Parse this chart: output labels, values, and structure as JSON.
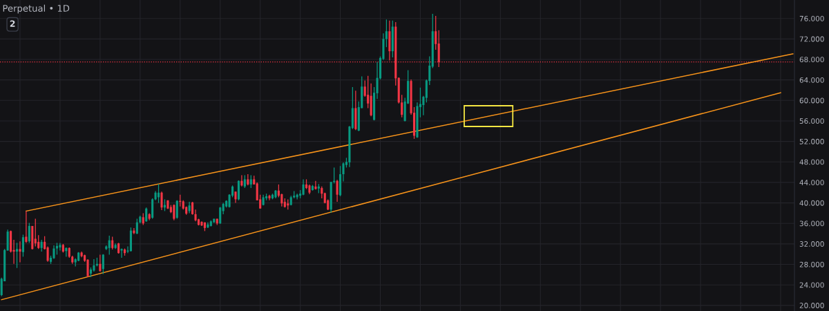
{
  "chart_data": {
    "type": "candlestick",
    "title": "Perpetual • 1D",
    "annotations": [
      "2"
    ],
    "categories": [
      null,
      null,
      null,
      null,
      null,
      null,
      null,
      null,
      null,
      null,
      null,
      null,
      null,
      null,
      null,
      null,
      null,
      null,
      null,
      null,
      null,
      null,
      null,
      null,
      null,
      null,
      null,
      null,
      null,
      null,
      null,
      null,
      null,
      null,
      null,
      null,
      null,
      null,
      null,
      null,
      null,
      null,
      null,
      null,
      null,
      null,
      null,
      null,
      null,
      null,
      null,
      null,
      null,
      null,
      null,
      null,
      null,
      null,
      null,
      null,
      null,
      null,
      null,
      null,
      null,
      null,
      null,
      null,
      null,
      null,
      null,
      null,
      null,
      null,
      null,
      null,
      null,
      null,
      null,
      null,
      null,
      null,
      null,
      null,
      null,
      null,
      null,
      null,
      null,
      null,
      null,
      null,
      null,
      null,
      null,
      null,
      null,
      null,
      null,
      null,
      null,
      null,
      null,
      null,
      null,
      null,
      null,
      null,
      null,
      null,
      null,
      null,
      null,
      null,
      null,
      null,
      null,
      null,
      null,
      null,
      null,
      null,
      null,
      null,
      null,
      null,
      null,
      null,
      null,
      null,
      null,
      null,
      null,
      null,
      null,
      null,
      null,
      null,
      null,
      null,
      null,
      null,
      null,
      null,
      null,
      null,
      null,
      null,
      null,
      null,
      null,
      null,
      null,
      null,
      null,
      null,
      null,
      null,
      null,
      null,
      null,
      null,
      null,
      null,
      null,
      null,
      null,
      null,
      null,
      null,
      null,
      null,
      null,
      null,
      null,
      null,
      null,
      null,
      null,
      null,
      null,
      null,
      null,
      null,
      null,
      null,
      null,
      null,
      null,
      null,
      null,
      null,
      null,
      null,
      null,
      null,
      null,
      null,
      null,
      null,
      null,
      null,
      null,
      null,
      null,
      null,
      null,
      null,
      null,
      null,
      null,
      null,
      null,
      null,
      null,
      null,
      null,
      null,
      null,
      null,
      null,
      null,
      null,
      null,
      null,
      null,
      null,
      null,
      null,
      null,
      null,
      null,
      null,
      null,
      null,
      null,
      null,
      null,
      null,
      null,
      null,
      null,
      null,
      null,
      null,
      null,
      null,
      null,
      null,
      null,
      null,
      null,
      null,
      null,
      null,
      null,
      null,
      null
    ],
    "ohlc": [
      [
        22.0,
        25.4,
        21.8,
        25.2
      ],
      [
        24.7,
        31.0,
        24.7,
        30.8
      ],
      [
        30.7,
        34.8,
        30.7,
        34.4
      ],
      [
        34.5,
        34.6,
        30.3,
        30.5
      ],
      [
        30.8,
        32.8,
        28.1,
        30.5
      ],
      [
        30.5,
        32.2,
        27.3,
        31.0
      ],
      [
        31.0,
        32.5,
        28.4,
        30.5
      ],
      [
        30.4,
        33.8,
        29.5,
        33.3
      ],
      [
        33.4,
        38.4,
        32.2,
        32.4
      ],
      [
        32.5,
        36.1,
        32.2,
        35.5
      ],
      [
        35.5,
        35.5,
        30.9,
        31.0
      ],
      [
        33.0,
        36.9,
        31.5,
        32.1
      ],
      [
        32.4,
        33.7,
        31.0,
        31.2
      ],
      [
        31.2,
        32.8,
        30.5,
        32.4
      ],
      [
        32.4,
        33.5,
        30.9,
        31.0
      ],
      [
        31.3,
        31.5,
        28.5,
        28.7
      ],
      [
        28.5,
        29.7,
        28.1,
        29.3
      ],
      [
        29.2,
        31.7,
        29.1,
        31.1
      ],
      [
        31.1,
        32.2,
        29.9,
        31.6
      ],
      [
        31.3,
        32.2,
        30.7,
        31.8
      ],
      [
        31.8,
        32.0,
        30.3,
        30.5
      ],
      [
        30.6,
        31.3,
        29.5,
        31.2
      ],
      [
        31.2,
        31.3,
        29.3,
        29.5
      ],
      [
        29.5,
        29.7,
        28.1,
        28.4
      ],
      [
        28.4,
        29.2,
        27.6,
        29.0
      ],
      [
        28.7,
        30.4,
        28.6,
        30.3
      ],
      [
        30.3,
        30.5,
        29.4,
        29.6
      ],
      [
        29.8,
        29.9,
        28.5,
        28.7
      ],
      [
        28.9,
        29.0,
        25.5,
        25.7
      ],
      [
        26.2,
        27.4,
        25.5,
        27.0
      ],
      [
        26.8,
        29.0,
        26.6,
        27.8
      ],
      [
        27.8,
        29.3,
        27.6,
        28.1
      ],
      [
        28.1,
        29.9,
        26.6,
        26.7
      ],
      [
        27.1,
        30.0,
        26.1,
        29.9
      ],
      [
        31.0,
        31.7,
        30.8,
        31.5
      ],
      [
        31.2,
        33.6,
        29.9,
        32.7
      ],
      [
        32.7,
        33.4,
        30.9,
        31.2
      ],
      [
        31.2,
        32.1,
        31.0,
        31.8
      ],
      [
        32.1,
        32.2,
        30.1,
        30.2
      ],
      [
        30.7,
        31.1,
        29.3,
        31.0
      ],
      [
        30.9,
        31.1,
        29.7,
        30.2
      ],
      [
        30.5,
        31.5,
        30.2,
        30.7
      ],
      [
        30.6,
        35.2,
        30.5,
        34.6
      ],
      [
        34.6,
        35.1,
        33.9,
        34.1
      ],
      [
        34.0,
        36.9,
        33.9,
        36.2
      ],
      [
        36.2,
        37.5,
        36.0,
        37.3
      ],
      [
        37.2,
        38.0,
        35.7,
        36.0
      ],
      [
        36.4,
        39.1,
        36.3,
        38.9
      ],
      [
        37.8,
        38.0,
        36.6,
        36.9
      ],
      [
        37.1,
        40.9,
        36.9,
        40.7
      ],
      [
        40.7,
        42.3,
        40.5,
        42.0
      ],
      [
        41.1,
        43.7,
        40.0,
        42.0
      ],
      [
        42.0,
        42.2,
        38.6,
        39.1
      ],
      [
        39.1,
        40.7,
        38.4,
        39.6
      ],
      [
        40.5,
        40.5,
        38.8,
        38.9
      ],
      [
        39.2,
        39.6,
        38.0,
        38.2
      ],
      [
        39.6,
        39.7,
        36.6,
        36.9
      ],
      [
        37.1,
        40.5,
        36.9,
        40.4
      ],
      [
        40.4,
        41.6,
        39.3,
        40.2
      ],
      [
        40.3,
        40.5,
        38.7,
        38.9
      ],
      [
        39.2,
        39.3,
        37.7,
        37.9
      ],
      [
        38.4,
        40.2,
        38.0,
        39.5
      ],
      [
        40.1,
        40.2,
        37.7,
        37.8
      ],
      [
        37.8,
        38.7,
        36.4,
        36.6
      ],
      [
        36.8,
        36.9,
        35.6,
        35.7
      ],
      [
        36.3,
        36.4,
        35.5,
        35.6
      ],
      [
        36.2,
        36.2,
        34.5,
        35.1
      ],
      [
        35.2,
        36.2,
        35.1,
        35.8
      ],
      [
        35.5,
        36.6,
        35.4,
        36.4
      ],
      [
        36.2,
        36.9,
        36.1,
        36.9
      ],
      [
        36.9,
        36.9,
        35.7,
        36.0
      ],
      [
        36.0,
        39.2,
        35.9,
        39.1
      ],
      [
        38.4,
        40.0,
        37.8,
        39.8
      ],
      [
        39.3,
        40.5,
        39.1,
        40.4
      ],
      [
        39.2,
        41.7,
        39.1,
        41.6
      ],
      [
        41.4,
        43.4,
        41.1,
        43.2
      ],
      [
        42.2,
        42.2,
        40.0,
        40.7
      ],
      [
        40.7,
        44.4,
        40.5,
        44.3
      ],
      [
        44.3,
        45.4,
        43.2,
        43.4
      ],
      [
        43.2,
        45.4,
        42.9,
        44.6
      ],
      [
        44.6,
        45.6,
        43.4,
        43.6
      ],
      [
        43.6,
        45.4,
        42.9,
        44.6
      ],
      [
        44.6,
        45.3,
        43.6,
        43.6
      ],
      [
        43.8,
        44.0,
        40.5,
        40.5
      ],
      [
        40.7,
        41.6,
        38.9,
        38.9
      ],
      [
        39.6,
        41.6,
        39.5,
        41.1
      ],
      [
        40.9,
        41.8,
        40.5,
        41.3
      ],
      [
        41.4,
        41.6,
        40.5,
        40.9
      ],
      [
        40.9,
        41.8,
        40.7,
        41.6
      ],
      [
        41.1,
        42.5,
        40.9,
        42.4
      ],
      [
        42.4,
        43.6,
        41.1,
        41.4
      ],
      [
        41.7,
        41.8,
        39.3,
        39.9
      ],
      [
        40.2,
        40.9,
        39.1,
        39.2
      ],
      [
        39.9,
        40.7,
        38.7,
        39.5
      ],
      [
        39.6,
        41.4,
        39.5,
        41.1
      ],
      [
        41.1,
        42.3,
        40.9,
        41.4
      ],
      [
        41.1,
        41.8,
        40.7,
        41.6
      ],
      [
        41.4,
        42.5,
        40.9,
        41.8
      ],
      [
        41.6,
        44.6,
        41.5,
        43.6
      ],
      [
        43.6,
        44.6,
        42.7,
        42.9
      ],
      [
        43.4,
        43.6,
        41.7,
        42.0
      ],
      [
        42.5,
        43.5,
        42.4,
        43.3
      ],
      [
        43.2,
        44.3,
        42.6,
        42.7
      ],
      [
        42.8,
        43.7,
        41.9,
        43.2
      ],
      [
        42.9,
        43.2,
        40.9,
        41.8
      ],
      [
        41.9,
        42.0,
        39.9,
        40.0
      ],
      [
        40.5,
        40.7,
        38.6,
        38.7
      ],
      [
        38.7,
        44.1,
        38.1,
        44.1
      ],
      [
        44.1,
        46.9,
        43.8,
        44.3
      ],
      [
        44.3,
        44.5,
        40.2,
        41.6
      ],
      [
        41.5,
        47.2,
        41.3,
        45.6
      ],
      [
        45.6,
        47.9,
        44.2,
        47.7
      ],
      [
        47.4,
        48.8,
        46.9,
        48.0
      ],
      [
        47.9,
        55.0,
        47.0,
        54.9
      ],
      [
        54.6,
        62.6,
        54.4,
        58.5
      ],
      [
        58.5,
        61.9,
        54.2,
        54.4
      ],
      [
        54.1,
        59.8,
        54.0,
        58.7
      ],
      [
        58.5,
        64.7,
        58.5,
        62.7
      ],
      [
        62.7,
        63.9,
        60.7,
        60.9
      ],
      [
        61.1,
        64.8,
        58.5,
        59.4
      ],
      [
        60.9,
        63.3,
        56.9,
        57.1
      ],
      [
        56.2,
        62.6,
        56.1,
        61.5
      ],
      [
        61.4,
        67.5,
        60.3,
        64.4
      ],
      [
        64.3,
        68.6,
        64.1,
        68.3
      ],
      [
        68.1,
        73.1,
        67.9,
        72.0
      ],
      [
        72.0,
        75.8,
        70.4,
        73.5
      ],
      [
        73.5,
        75.6,
        67.8,
        69.6
      ],
      [
        69.6,
        75.6,
        68.4,
        74.4
      ],
      [
        74.4,
        75.3,
        62.9,
        64.3
      ],
      [
        64.4,
        64.5,
        59.4,
        59.6
      ],
      [
        59.6,
        61.1,
        56.7,
        57.2
      ],
      [
        56.0,
        60.5,
        55.9,
        59.8
      ],
      [
        59.4,
        65.9,
        59.3,
        63.8
      ],
      [
        63.8,
        64.1,
        57.2,
        57.5
      ],
      [
        57.6,
        58.7,
        52.5,
        53.1
      ],
      [
        52.8,
        59.6,
        52.7,
        58.9
      ],
      [
        58.7,
        62.5,
        56.7,
        59.3
      ],
      [
        59.1,
        60.9,
        57.1,
        60.7
      ],
      [
        60.5,
        64.1,
        59.6,
        63.9
      ],
      [
        63.8,
        68.6,
        63.0,
        66.8
      ],
      [
        66.6,
        76.9,
        66.3,
        73.5
      ],
      [
        73.5,
        76.5,
        69.9,
        71.0
      ],
      [
        71.1,
        73.7,
        66.5,
        67.5
      ],
      null,
      null,
      null,
      null,
      null,
      null,
      null,
      null,
      null,
      null,
      null,
      null,
      null,
      null,
      null,
      null,
      null,
      null,
      null,
      null,
      null,
      null,
      null,
      null,
      null,
      null,
      null,
      null,
      null,
      null,
      null,
      null,
      null,
      null,
      null,
      null,
      null,
      null,
      null,
      null,
      null,
      null,
      null,
      null,
      null,
      null,
      null,
      null,
      null,
      null,
      null,
      null,
      null,
      null,
      null,
      null,
      null,
      null,
      null,
      null,
      null,
      null,
      null,
      null,
      null,
      null,
      null,
      null,
      null,
      null,
      null,
      null,
      null,
      null,
      null,
      null,
      null,
      null,
      null,
      null,
      null,
      null,
      null,
      null,
      null,
      null,
      null,
      null,
      null,
      null,
      null,
      null,
      null,
      null,
      null,
      null,
      null,
      null,
      null,
      null,
      null,
      null,
      null,
      null,
      null,
      null,
      null,
      null,
      null,
      null,
      null,
      null,
      null,
      null,
      null
    ],
    "colors": [
      "#089981",
      "#089981",
      "#089981",
      "#f23645",
      "#f23645",
      "#089981",
      "#f23645",
      "#089981",
      "#f23645",
      "#089981",
      "#f23645",
      "#f23645",
      "#f23645",
      "#089981",
      "#f23645",
      "#f23645",
      "#089981",
      "#089981",
      "#089981",
      "#089981",
      "#f23645",
      "#089981",
      "#f23645",
      "#f23645",
      "#089981",
      "#089981",
      "#f23645",
      "#f23645",
      "#f23645",
      "#089981",
      "#089981",
      "#089981",
      "#f23645",
      "#089981",
      "#089981",
      "#089981",
      "#f23645",
      "#089981",
      "#f23645",
      "#089981",
      "#f23645",
      "#089981",
      "#089981",
      "#f23645",
      "#089981",
      "#089981",
      "#f23645",
      "#089981",
      "#f23645",
      "#089981",
      "#089981",
      "#089981",
      "#f23645",
      "#089981",
      "#f23645",
      "#f23645",
      "#f23645",
      "#089981",
      "#f23645",
      "#f23645",
      "#f23645",
      "#089981",
      "#f23645",
      "#f23645",
      "#f23645",
      "#f23645",
      "#f23645",
      "#089981",
      "#089981",
      "#089981",
      "#f23645",
      "#089981",
      "#089981",
      "#089981",
      "#089981",
      "#089981",
      "#f23645",
      "#089981",
      "#f23645",
      "#089981",
      "#f23645",
      "#089981",
      "#f23645",
      "#f23645",
      "#f23645",
      "#089981",
      "#089981",
      "#f23645",
      "#089981",
      "#089981",
      "#f23645",
      "#f23645",
      "#f23645",
      "#f23645",
      "#089981",
      "#089981",
      "#089981",
      "#089981",
      "#089981",
      "#f23645",
      "#f23645",
      "#089981",
      "#f23645",
      "#089981",
      "#f23645",
      "#f23645",
      "#f23645",
      "#089981",
      "#089981",
      "#f23645",
      "#089981",
      "#089981",
      "#089981",
      "#089981",
      "#089981",
      "#f23645",
      "#089981",
      "#089981",
      "#f23645",
      "#f23645",
      "#f23645",
      "#089981",
      "#089981",
      "#089981",
      "#089981",
      "#089981",
      "#f23645",
      "#089981",
      "#f23645",
      "#f23645",
      "#f23645",
      "#089981",
      "#089981",
      "#f23645",
      "#f23645",
      "#089981",
      "#089981",
      "#089981",
      "#089981",
      "#089981",
      "#089981",
      "#f23645",
      "#f23645",
      null,
      null,
      null,
      null,
      null,
      null,
      null,
      null,
      null,
      null,
      null,
      null,
      null,
      null,
      null,
      null,
      null,
      null,
      null,
      null,
      null,
      null,
      null,
      null,
      null,
      null,
      null,
      null,
      null,
      null,
      null,
      null,
      null,
      null,
      null,
      null,
      null,
      null,
      null,
      null,
      null,
      null,
      null,
      null,
      null,
      null,
      null,
      null,
      null,
      null,
      null,
      null,
      null,
      null,
      null,
      null,
      null,
      null,
      null,
      null,
      null,
      null,
      null,
      null,
      null,
      null,
      null,
      null,
      null,
      null,
      null,
      null,
      null,
      null,
      null,
      null,
      null,
      null,
      null,
      null,
      null,
      null,
      null,
      null,
      null,
      null,
      null,
      null,
      null,
      null,
      null,
      null,
      null,
      null,
      null,
      null,
      null,
      null,
      null,
      null,
      null,
      null,
      null,
      null,
      null,
      null,
      null,
      null,
      null,
      null,
      null,
      null,
      null,
      null,
      null
    ],
    "series": [
      {
        "type": "line",
        "color": "#f7931a",
        "values": [
          null,
          null,
          null,
          null,
          null,
          null,
          null,
          null,
          38.4,
          null,
          null,
          null,
          null,
          null,
          null,
          null,
          null,
          null,
          null,
          null,
          null,
          null,
          null,
          null,
          null,
          null,
          null,
          null,
          null,
          null,
          null,
          null,
          null,
          null,
          null,
          null,
          null,
          null,
          null,
          null,
          null,
          null,
          null,
          null,
          null,
          null,
          null,
          null,
          null,
          null,
          null,
          null,
          null,
          null,
          null,
          null,
          null,
          null,
          null,
          null,
          null,
          null,
          null,
          null,
          null,
          null,
          null,
          null,
          null,
          null,
          null,
          null,
          null,
          null,
          null,
          null,
          null,
          null,
          null,
          null,
          null,
          null,
          null,
          null,
          null,
          null,
          null,
          null,
          null,
          null,
          null,
          null,
          null,
          null,
          null,
          null,
          null,
          null,
          null,
          null,
          null,
          null,
          null,
          null,
          null,
          null,
          null,
          null,
          null,
          null,
          null,
          null,
          null,
          null,
          null,
          null,
          null,
          null,
          null,
          null,
          null,
          null,
          null,
          null,
          null,
          null,
          null,
          null,
          null,
          null,
          null,
          null,
          null,
          null,
          null,
          null,
          null,
          null,
          null,
          null,
          null,
          null,
          null,
          null,
          null,
          null,
          null,
          null,
          null,
          null,
          null,
          null,
          null,
          null,
          null,
          null,
          null,
          null,
          null,
          null,
          null,
          null,
          null,
          null,
          null,
          null,
          null,
          null,
          null,
          null,
          null,
          null,
          null,
          null,
          null,
          null,
          null,
          null,
          null,
          null,
          null,
          null,
          null,
          null,
          null,
          null,
          null,
          null,
          null,
          null,
          null,
          null,
          null,
          null,
          null,
          null,
          null,
          null,
          null,
          null,
          null,
          null,
          null,
          null,
          null,
          null,
          null,
          null,
          null,
          null,
          null,
          null,
          null,
          null,
          null,
          null,
          null,
          null,
          null,
          null,
          null,
          null,
          null,
          null,
          null,
          null,
          null,
          null,
          null,
          null,
          null,
          null,
          null,
          null,
          null,
          null,
          null,
          null,
          null,
          null,
          null,
          null,
          null,
          null,
          null,
          null,
          null,
          null,
          null,
          null,
          null,
          null,
          null,
          null,
          null,
          null,
          null,
          69.1
        ]
      },
      {
        "type": "line",
        "color": "#f7931a",
        "values": [
          21.1,
          null,
          null,
          null,
          null,
          null,
          null,
          null,
          null,
          null,
          null,
          null,
          null,
          null,
          null,
          null,
          null,
          null,
          null,
          null,
          null,
          null,
          null,
          null,
          null,
          null,
          null,
          null,
          null,
          null,
          null,
          null,
          null,
          null,
          null,
          null,
          null,
          null,
          null,
          null,
          null,
          null,
          null,
          null,
          null,
          null,
          null,
          null,
          null,
          null,
          null,
          null,
          null,
          null,
          null,
          null,
          null,
          null,
          null,
          null,
          null,
          null,
          null,
          null,
          null,
          null,
          null,
          null,
          null,
          null,
          null,
          null,
          null,
          null,
          null,
          null,
          null,
          null,
          null,
          null,
          null,
          null,
          null,
          null,
          null,
          null,
          null,
          null,
          null,
          null,
          null,
          null,
          null,
          null,
          null,
          null,
          null,
          null,
          null,
          null,
          null,
          null,
          null,
          null,
          null,
          null,
          null,
          null,
          null,
          null,
          null,
          null,
          null,
          null,
          null,
          null,
          null,
          null,
          null,
          null,
          null,
          null,
          null,
          null,
          null,
          null,
          null,
          null,
          null,
          null,
          null,
          null,
          null,
          null,
          null,
          null,
          null,
          null,
          null,
          null,
          null,
          null,
          null,
          null,
          null,
          null,
          null,
          null,
          null,
          null,
          null,
          null,
          null,
          null,
          null,
          null,
          null,
          null,
          null,
          null,
          null,
          null,
          null,
          null,
          null,
          null,
          null,
          null,
          null,
          null,
          null,
          null,
          null,
          null,
          null,
          null,
          null,
          null,
          null,
          null,
          null,
          null,
          null,
          null,
          null,
          null,
          null,
          null,
          null,
          null,
          null,
          null,
          null,
          null,
          null,
          null,
          null,
          null,
          null,
          null,
          null,
          null,
          null,
          null,
          null,
          null,
          null,
          null,
          null,
          null,
          null,
          null,
          null,
          null,
          null,
          null,
          null,
          null,
          null,
          null,
          null,
          null,
          null,
          null,
          null,
          null,
          null,
          null,
          null,
          null,
          null,
          null,
          null,
          null,
          null,
          null,
          null,
          null,
          null,
          null,
          null,
          null,
          null,
          null,
          null,
          null,
          null,
          null,
          null,
          null,
          null,
          null,
          null,
          61.5,
          null,
          null,
          null,
          null
        ]
      }
    ],
    "ref_lines": [
      {
        "axis": "y",
        "value": 67.5,
        "color": "#f23645",
        "line_style": "dotted"
      }
    ],
    "ylim": [
      18.9,
      79.6
    ],
    "yticks": [
      {
        "value": 20,
        "label": "20.000"
      },
      {
        "value": 24,
        "label": "24.000"
      },
      {
        "value": 28,
        "label": "28.000"
      },
      {
        "value": 32,
        "label": "32.000"
      },
      {
        "value": 36,
        "label": "36.000"
      },
      {
        "value": 40,
        "label": "40.000"
      },
      {
        "value": 44,
        "label": "44.000"
      },
      {
        "value": 48,
        "label": "48.000"
      },
      {
        "value": 52,
        "label": "52.000"
      },
      {
        "value": 56,
        "label": "56.000"
      },
      {
        "value": 60,
        "label": "60.000"
      },
      {
        "value": 64,
        "label": "64.000"
      },
      {
        "value": 68,
        "label": "68.000"
      },
      {
        "value": 72,
        "label": "72.000"
      },
      {
        "value": 76,
        "label": "76.000"
      }
    ],
    "grid": true
  }
}
